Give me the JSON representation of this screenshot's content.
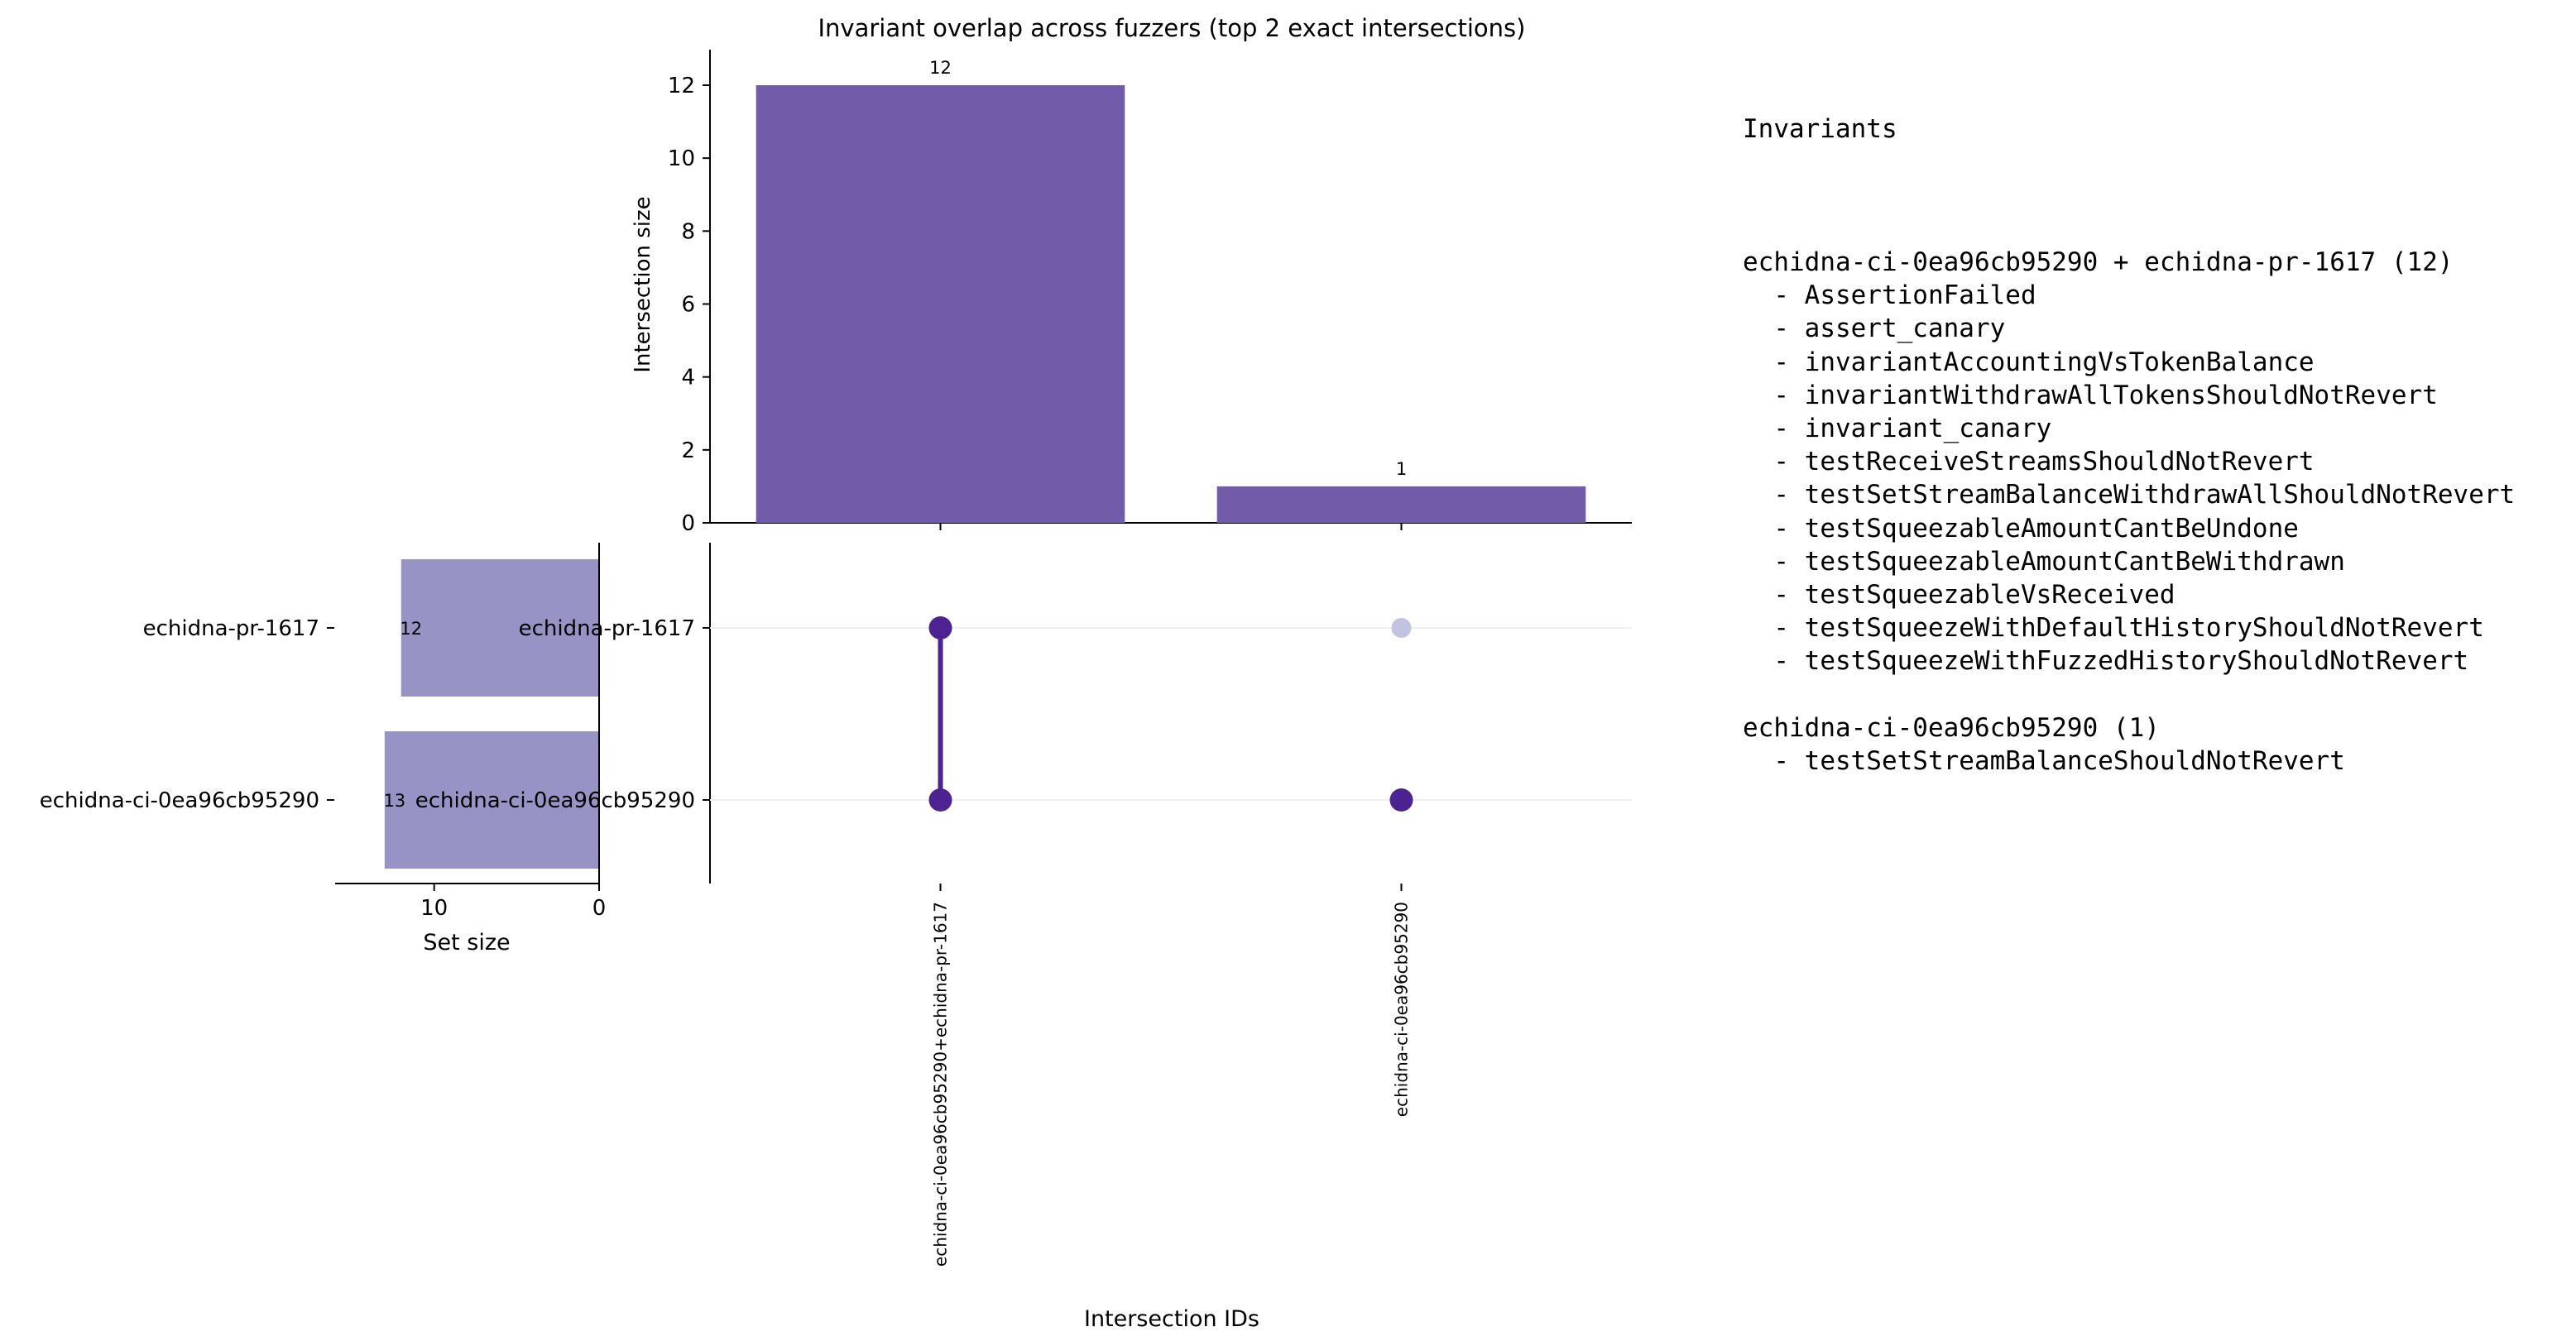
{
  "colors": {
    "intersection_bar": "#725ca9",
    "set_bar": "#9893c5",
    "dot_active": "#4d2291",
    "dot_inactive": "#c2c3e0",
    "connector": "#4d2291"
  },
  "chart_data": {
    "type": "upset",
    "title": "Invariant overlap across fuzzers (top 2 exact intersections)",
    "sets": [
      {
        "name": "echidna-pr-1617",
        "size": 12
      },
      {
        "name": "echidna-ci-0ea96cb95290",
        "size": 13
      }
    ],
    "set_size_axis": {
      "label": "Set size",
      "xlim": [
        0,
        16
      ],
      "ticks": [
        10,
        0
      ]
    },
    "intersections": [
      {
        "id": "echidna-ci-0ea96cb95290+echidna-pr-1617",
        "size": 12,
        "members": [
          "echidna-pr-1617",
          "echidna-ci-0ea96cb95290"
        ]
      },
      {
        "id": "echidna-ci-0ea96cb95290",
        "size": 1,
        "members": [
          "echidna-ci-0ea96cb95290"
        ]
      }
    ],
    "intersection_axis": {
      "label": "Intersection size",
      "ylim": [
        0,
        13
      ],
      "ticks": [
        0,
        2,
        4,
        6,
        8,
        10,
        12
      ]
    },
    "xlabel": "Intersection IDs"
  },
  "legend_panel": {
    "heading": "Invariants",
    "groups": [
      {
        "title": "echidna-ci-0ea96cb95290 + echidna-pr-1617 (12)",
        "items": [
          "AssertionFailed",
          "assert_canary",
          "invariantAccountingVsTokenBalance",
          "invariantWithdrawAllTokensShouldNotRevert",
          "invariant_canary",
          "testReceiveStreamsShouldNotRevert",
          "testSetStreamBalanceWithdrawAllShouldNotRevert",
          "testSqueezableAmountCantBeUndone",
          "testSqueezableAmountCantBeWithdrawn",
          "testSqueezableVsReceived",
          "testSqueezeWithDefaultHistoryShouldNotRevert",
          "testSqueezeWithFuzzedHistoryShouldNotRevert"
        ]
      },
      {
        "title": "echidna-ci-0ea96cb95290 (1)",
        "items": [
          "testSetStreamBalanceShouldNotRevert"
        ]
      }
    ]
  }
}
